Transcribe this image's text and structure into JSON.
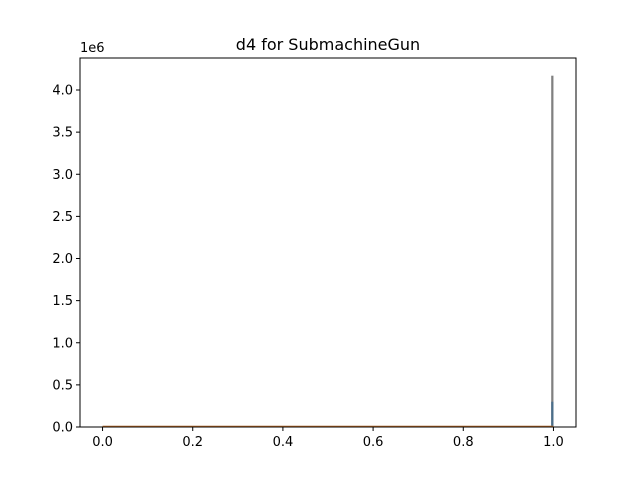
{
  "chart_data": {
    "type": "histogram",
    "title": "d4 for SubmachineGun",
    "xlabel": "",
    "ylabel": "",
    "y_offset_label": "1e6",
    "x_ticks": [
      "0.0",
      "0.2",
      "0.4",
      "0.6",
      "0.8",
      "1.0"
    ],
    "y_ticks": [
      "0.0",
      "0.5",
      "1.0",
      "1.5",
      "2.0",
      "2.5",
      "3.0",
      "3.5",
      "4.0"
    ],
    "xlim": [
      -0.05,
      1.05
    ],
    "ylim": [
      0,
      4.38
    ],
    "grid": false,
    "legend": "none",
    "series": [
      {
        "color": "#808080",
        "bins": [
          {
            "x0": 0.0,
            "x1": 0.995,
            "value": 0.0
          },
          {
            "x0": 0.995,
            "x1": 1.0,
            "value": 4.17
          }
        ]
      },
      {
        "color": "#4b6e8a",
        "bins": [
          {
            "x0": 0.995,
            "x1": 1.0,
            "value": 0.3
          }
        ]
      },
      {
        "color": "#d4792a",
        "bins": [
          {
            "x0": 0.0,
            "x1": 1.0,
            "value": 0.0
          }
        ]
      }
    ]
  }
}
